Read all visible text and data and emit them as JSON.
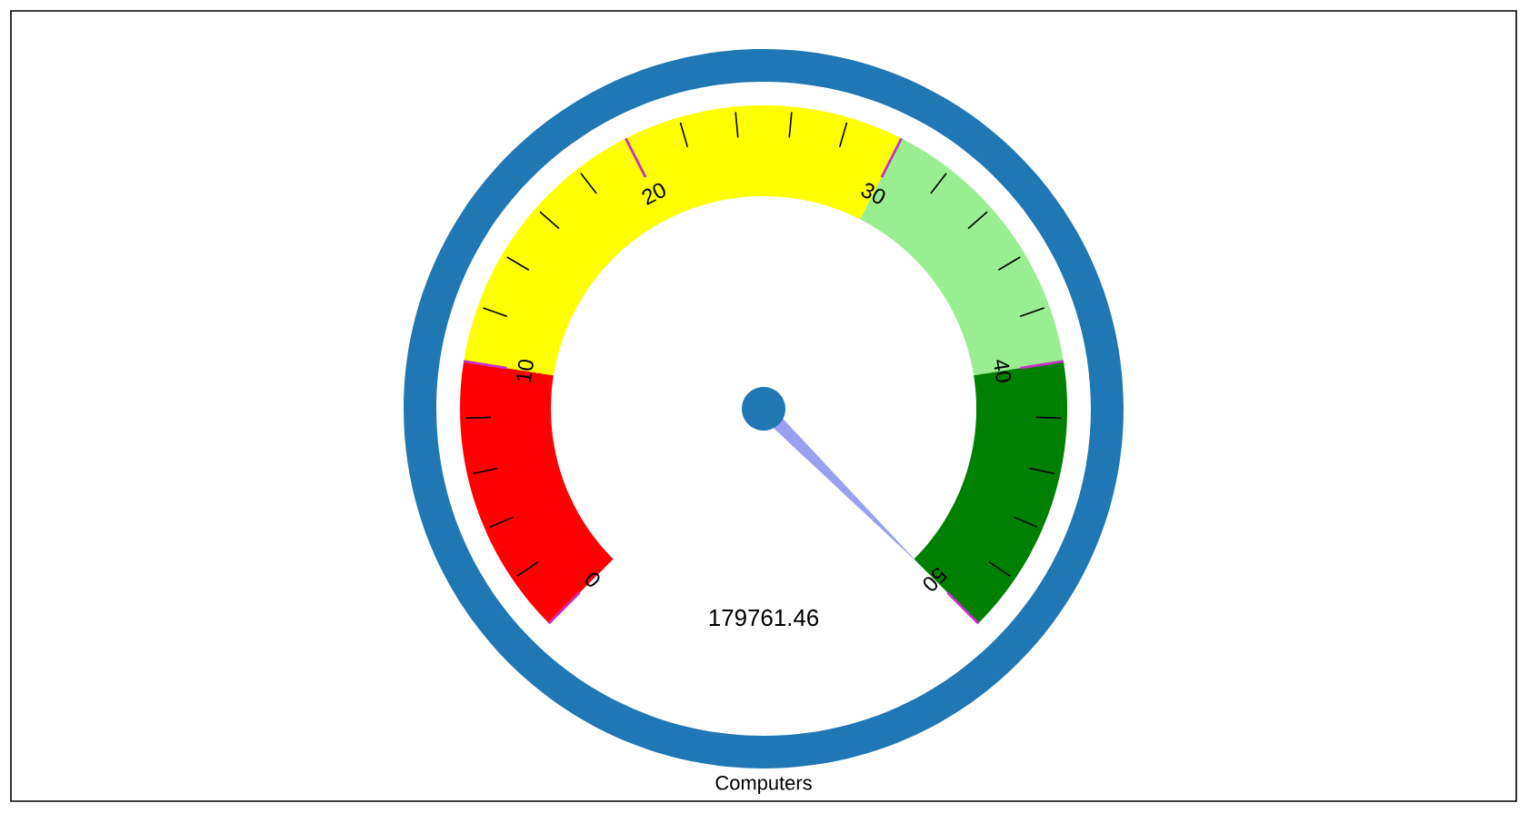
{
  "chart_data": {
    "type": "donut",
    "xlabel": "Computers",
    "categories": [
      null,
      null,
      null,
      null
    ],
    "values": [
      20,
      40,
      20,
      20
    ],
    "colors": [
      "#ff0000",
      "#ffff00",
      "#98ee90",
      "#008000"
    ],
    "annotations": [
      "179761.46",
      "0",
      "10",
      "20",
      "30",
      "40",
      "50"
    ]
  }
}
